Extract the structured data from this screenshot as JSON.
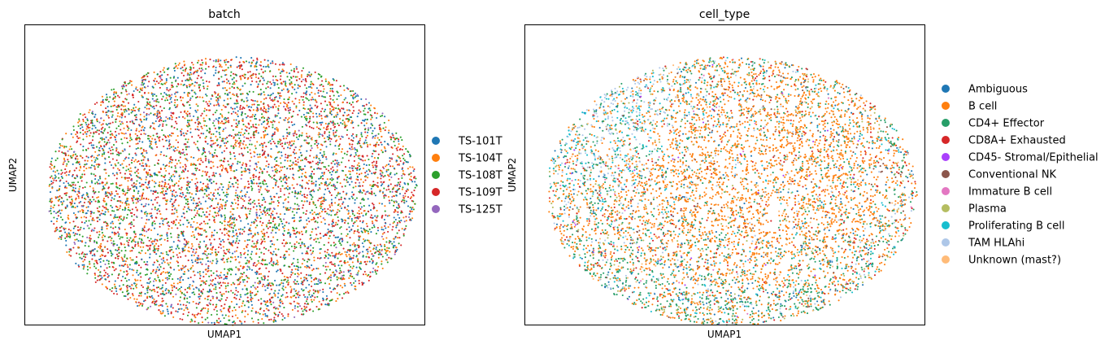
{
  "chart_data": [
    {
      "type": "scatter",
      "title": "batch",
      "xlabel": "UMAP1",
      "ylabel": "UMAP2",
      "grid": false,
      "ticks": "none",
      "legend_placement": "right",
      "legend": [
        {
          "label": "TS-101T",
          "color": "#1f77b4"
        },
        {
          "label": "TS-104T",
          "color": "#ff7f0e"
        },
        {
          "label": "TS-108T",
          "color": "#2ca02c"
        },
        {
          "label": "TS-109T",
          "color": "#d62728"
        },
        {
          "label": "TS-125T",
          "color": "#9467bd"
        }
      ],
      "series_mix": [
        0.2,
        0.22,
        0.24,
        0.3,
        0.04
      ]
    },
    {
      "type": "scatter",
      "title": "cell_type",
      "xlabel": "UMAP1",
      "ylabel": "UMAP2",
      "grid": false,
      "ticks": "none",
      "legend_placement": "right",
      "legend": [
        {
          "label": "Ambiguous",
          "color": "#1f77b4"
        },
        {
          "label": "B cell",
          "color": "#ff7f0e"
        },
        {
          "label": "CD4+ Effector",
          "color": "#279e68"
        },
        {
          "label": "CD8A+ Exhausted",
          "color": "#d62728"
        },
        {
          "label": "CD45- Stromal/Epithelial",
          "color": "#aa40fc"
        },
        {
          "label": "Conventional NK",
          "color": "#8c564b"
        },
        {
          "label": "Immature B cell",
          "color": "#e377c2"
        },
        {
          "label": "Plasma",
          "color": "#b5bd61"
        },
        {
          "label": "Proliferating B cell",
          "color": "#17becf"
        },
        {
          "label": "TAM HLAhi",
          "color": "#aec7e8"
        },
        {
          "label": "Unknown (mast?)",
          "color": "#ffbb78"
        }
      ]
    }
  ]
}
